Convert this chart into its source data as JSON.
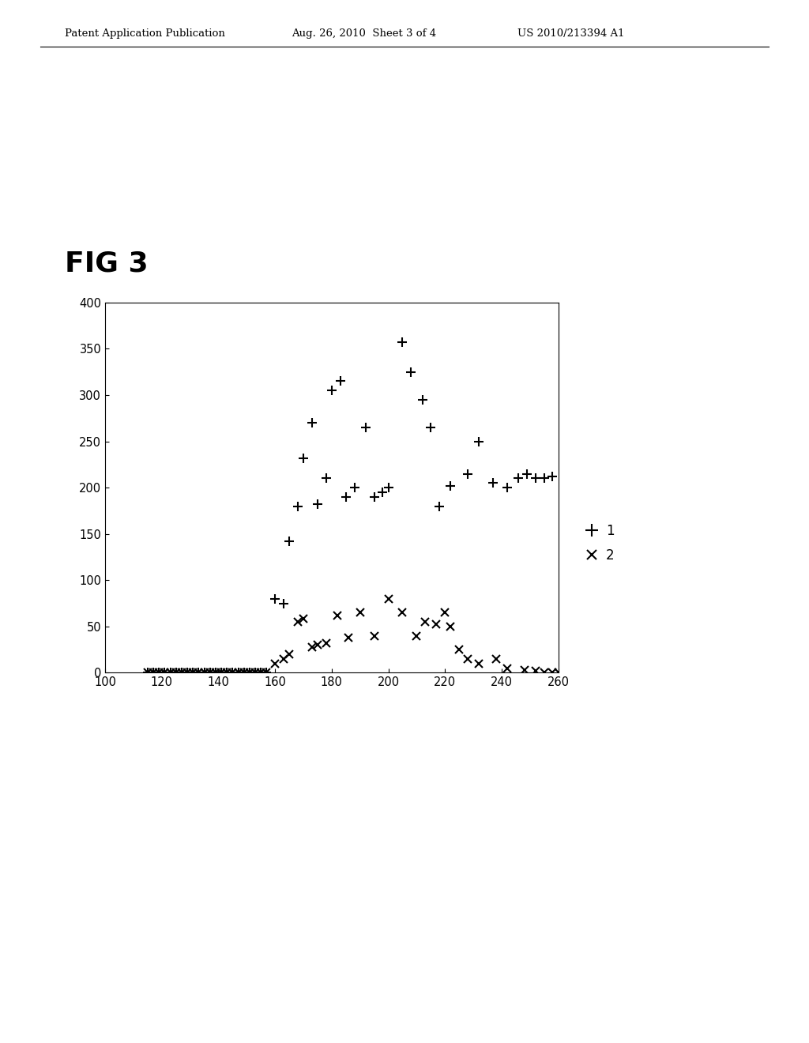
{
  "fig_label": "FIG 3",
  "header_left": "Patent Application Publication",
  "header_center": "Aug. 26, 2010  Sheet 3 of 4",
  "header_right": "US 2010/213394 A1",
  "xlim": [
    100,
    260
  ],
  "ylim": [
    0,
    400
  ],
  "xticks": [
    100,
    120,
    140,
    160,
    180,
    200,
    220,
    240,
    260
  ],
  "yticks": [
    0,
    50,
    100,
    150,
    200,
    250,
    300,
    350,
    400
  ],
  "series1_x": [
    115,
    117,
    119,
    121,
    123,
    125,
    127,
    129,
    131,
    133,
    135,
    137,
    139,
    141,
    143,
    145,
    147,
    149,
    151,
    153,
    155,
    157,
    160,
    163,
    165,
    168,
    170,
    173,
    175,
    178,
    180,
    183,
    185,
    188,
    192,
    195,
    198,
    200,
    205,
    208,
    212,
    215,
    218,
    222,
    228,
    232,
    237,
    242,
    246,
    249,
    252,
    255,
    258
  ],
  "series1_y": [
    0,
    0,
    0,
    0,
    0,
    0,
    0,
    0,
    0,
    0,
    0,
    0,
    0,
    0,
    0,
    0,
    0,
    0,
    0,
    0,
    0,
    0,
    80,
    75,
    142,
    180,
    232,
    270,
    182,
    210,
    305,
    315,
    190,
    200,
    265,
    190,
    195,
    200,
    357,
    325,
    295,
    265,
    180,
    202,
    215,
    250,
    205,
    200,
    210,
    215,
    210,
    210,
    212
  ],
  "series2_x": [
    115,
    117,
    119,
    121,
    123,
    125,
    127,
    129,
    131,
    133,
    135,
    137,
    139,
    141,
    143,
    145,
    147,
    149,
    151,
    153,
    155,
    157,
    160,
    163,
    165,
    168,
    170,
    173,
    175,
    178,
    182,
    186,
    190,
    195,
    200,
    205,
    210,
    213,
    217,
    220,
    222,
    225,
    228,
    232,
    238,
    242,
    248,
    252,
    255,
    258,
    260
  ],
  "series2_y": [
    0,
    0,
    0,
    0,
    0,
    0,
    0,
    0,
    0,
    0,
    0,
    0,
    0,
    0,
    0,
    0,
    0,
    0,
    0,
    0,
    0,
    0,
    10,
    15,
    20,
    55,
    58,
    28,
    30,
    32,
    62,
    38,
    65,
    40,
    80,
    65,
    40,
    55,
    52,
    65,
    50,
    25,
    15,
    10,
    15,
    5,
    3,
    2,
    0,
    0,
    0
  ],
  "legend_labels": [
    "1",
    "2"
  ],
  "background_color": "#ffffff",
  "plot_bg_color": "#ffffff",
  "text_color": "#000000"
}
